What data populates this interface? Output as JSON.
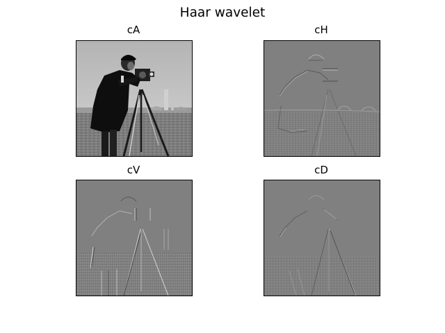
{
  "figure": {
    "suptitle": "Haar wavelet"
  },
  "panels": [
    {
      "title": "cA",
      "kind": "approximation"
    },
    {
      "title": "cH",
      "kind": "horizontal-detail"
    },
    {
      "title": "cV",
      "kind": "vertical-detail"
    },
    {
      "title": "cD",
      "kind": "diagonal-detail"
    }
  ],
  "colors": {
    "background": "#ffffff",
    "detail_gray": "#808080",
    "sky": "#b9b9b9",
    "grass": "#7a7a7a",
    "figure": "#101010"
  }
}
